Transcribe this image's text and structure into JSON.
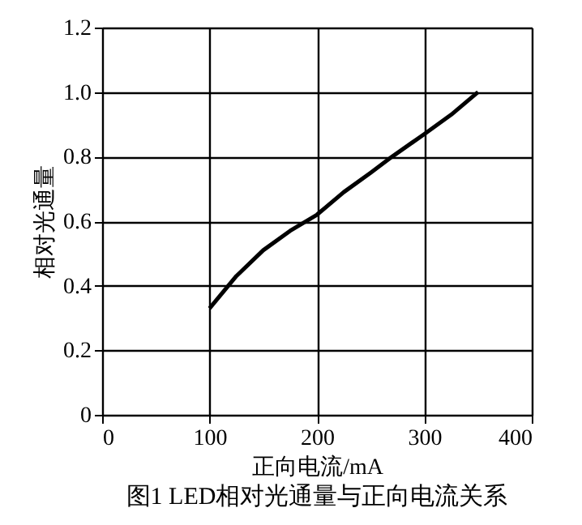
{
  "chart_data": {
    "type": "line",
    "title": "图1 LED相对光通量与正向电流关系",
    "xlabel": "正向电流/mA",
    "ylabel": "相对光通量",
    "x": [
      100,
      110,
      125,
      150,
      175,
      200,
      225,
      250,
      270,
      300,
      325,
      350
    ],
    "series": [
      {
        "color": "#000000",
        "values": [
          0.33,
          0.37,
          0.43,
          0.51,
          0.57,
          0.62,
          0.69,
          0.75,
          0.8,
          0.87,
          0.93,
          1.0
        ]
      }
    ],
    "xlim": [
      0,
      400
    ],
    "xticks": [
      0,
      100,
      200,
      300,
      400
    ],
    "ylim": [
      0,
      1.2
    ],
    "yticks": [
      0,
      0.2,
      0.4,
      0.6,
      0.8,
      {
        "value": 1,
        "label": "1.0"
      },
      1.2
    ],
    "grid": true,
    "marker": "none",
    "line_style": "solid"
  }
}
